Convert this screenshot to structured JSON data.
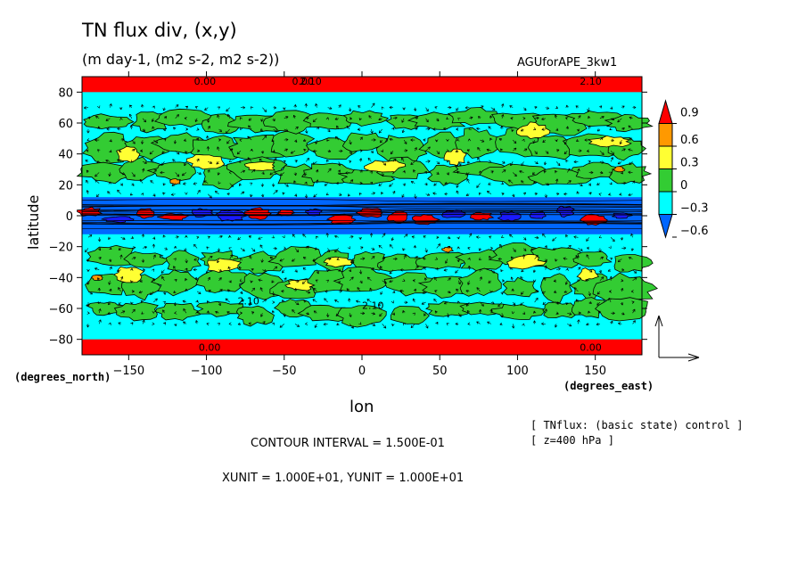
{
  "chart_data": {
    "type": "heatmap",
    "title": "TN flux div, (x,y)",
    "subtitle": "(m day-1, (m2 s-2, m2 s-2))",
    "run_name": "AGUforAPE_3kw1",
    "xlabel": "lon",
    "ylabel": "latitude",
    "x_unit": "(degrees_east)",
    "y_unit": "(degrees_north)",
    "xlim": [
      -180,
      180
    ],
    "ylim": [
      -90,
      90
    ],
    "x_ticks": [
      "-150",
      "-100",
      "-50",
      "0",
      "50",
      "100",
      "150"
    ],
    "y_ticks": [
      "80",
      "60",
      "40",
      "20",
      "0",
      "-20",
      "-40",
      "-60",
      "-80"
    ],
    "colorbar": {
      "labels": [
        "0.9",
        "0.6",
        "0.3",
        "0",
        "-0.3",
        "-0.6"
      ],
      "colors": [
        "#ff0000",
        "#ff9900",
        "#ffff33",
        "#33cc33",
        "#00ffff",
        "#0066ff",
        "#1a1aff"
      ]
    },
    "contour_labels": [
      "0.00",
      "2.10",
      "0.00",
      "2.10",
      "0.00",
      "0.00",
      "2.10",
      "2.10"
    ],
    "background_value_regions": [
      {
        "lat_range": [
          80,
          90
        ],
        "level": "0.9"
      },
      {
        "lat_range": [
          -90,
          -80
        ],
        "level": "0.9"
      },
      {
        "lat_range": [
          -12,
          12
        ],
        "level": "-0.6"
      }
    ],
    "vector_reference": "arrows",
    "contour_interval": "CONTOUR INTERVAL = 1.500E-01",
    "vector_units": "XUNIT = 1.000E+01, YUNIT = 1.000E+01"
  },
  "notes": {
    "line1": "[ TNflux: (basic state) control ]",
    "line2": "[ z=400 hPa ]"
  }
}
